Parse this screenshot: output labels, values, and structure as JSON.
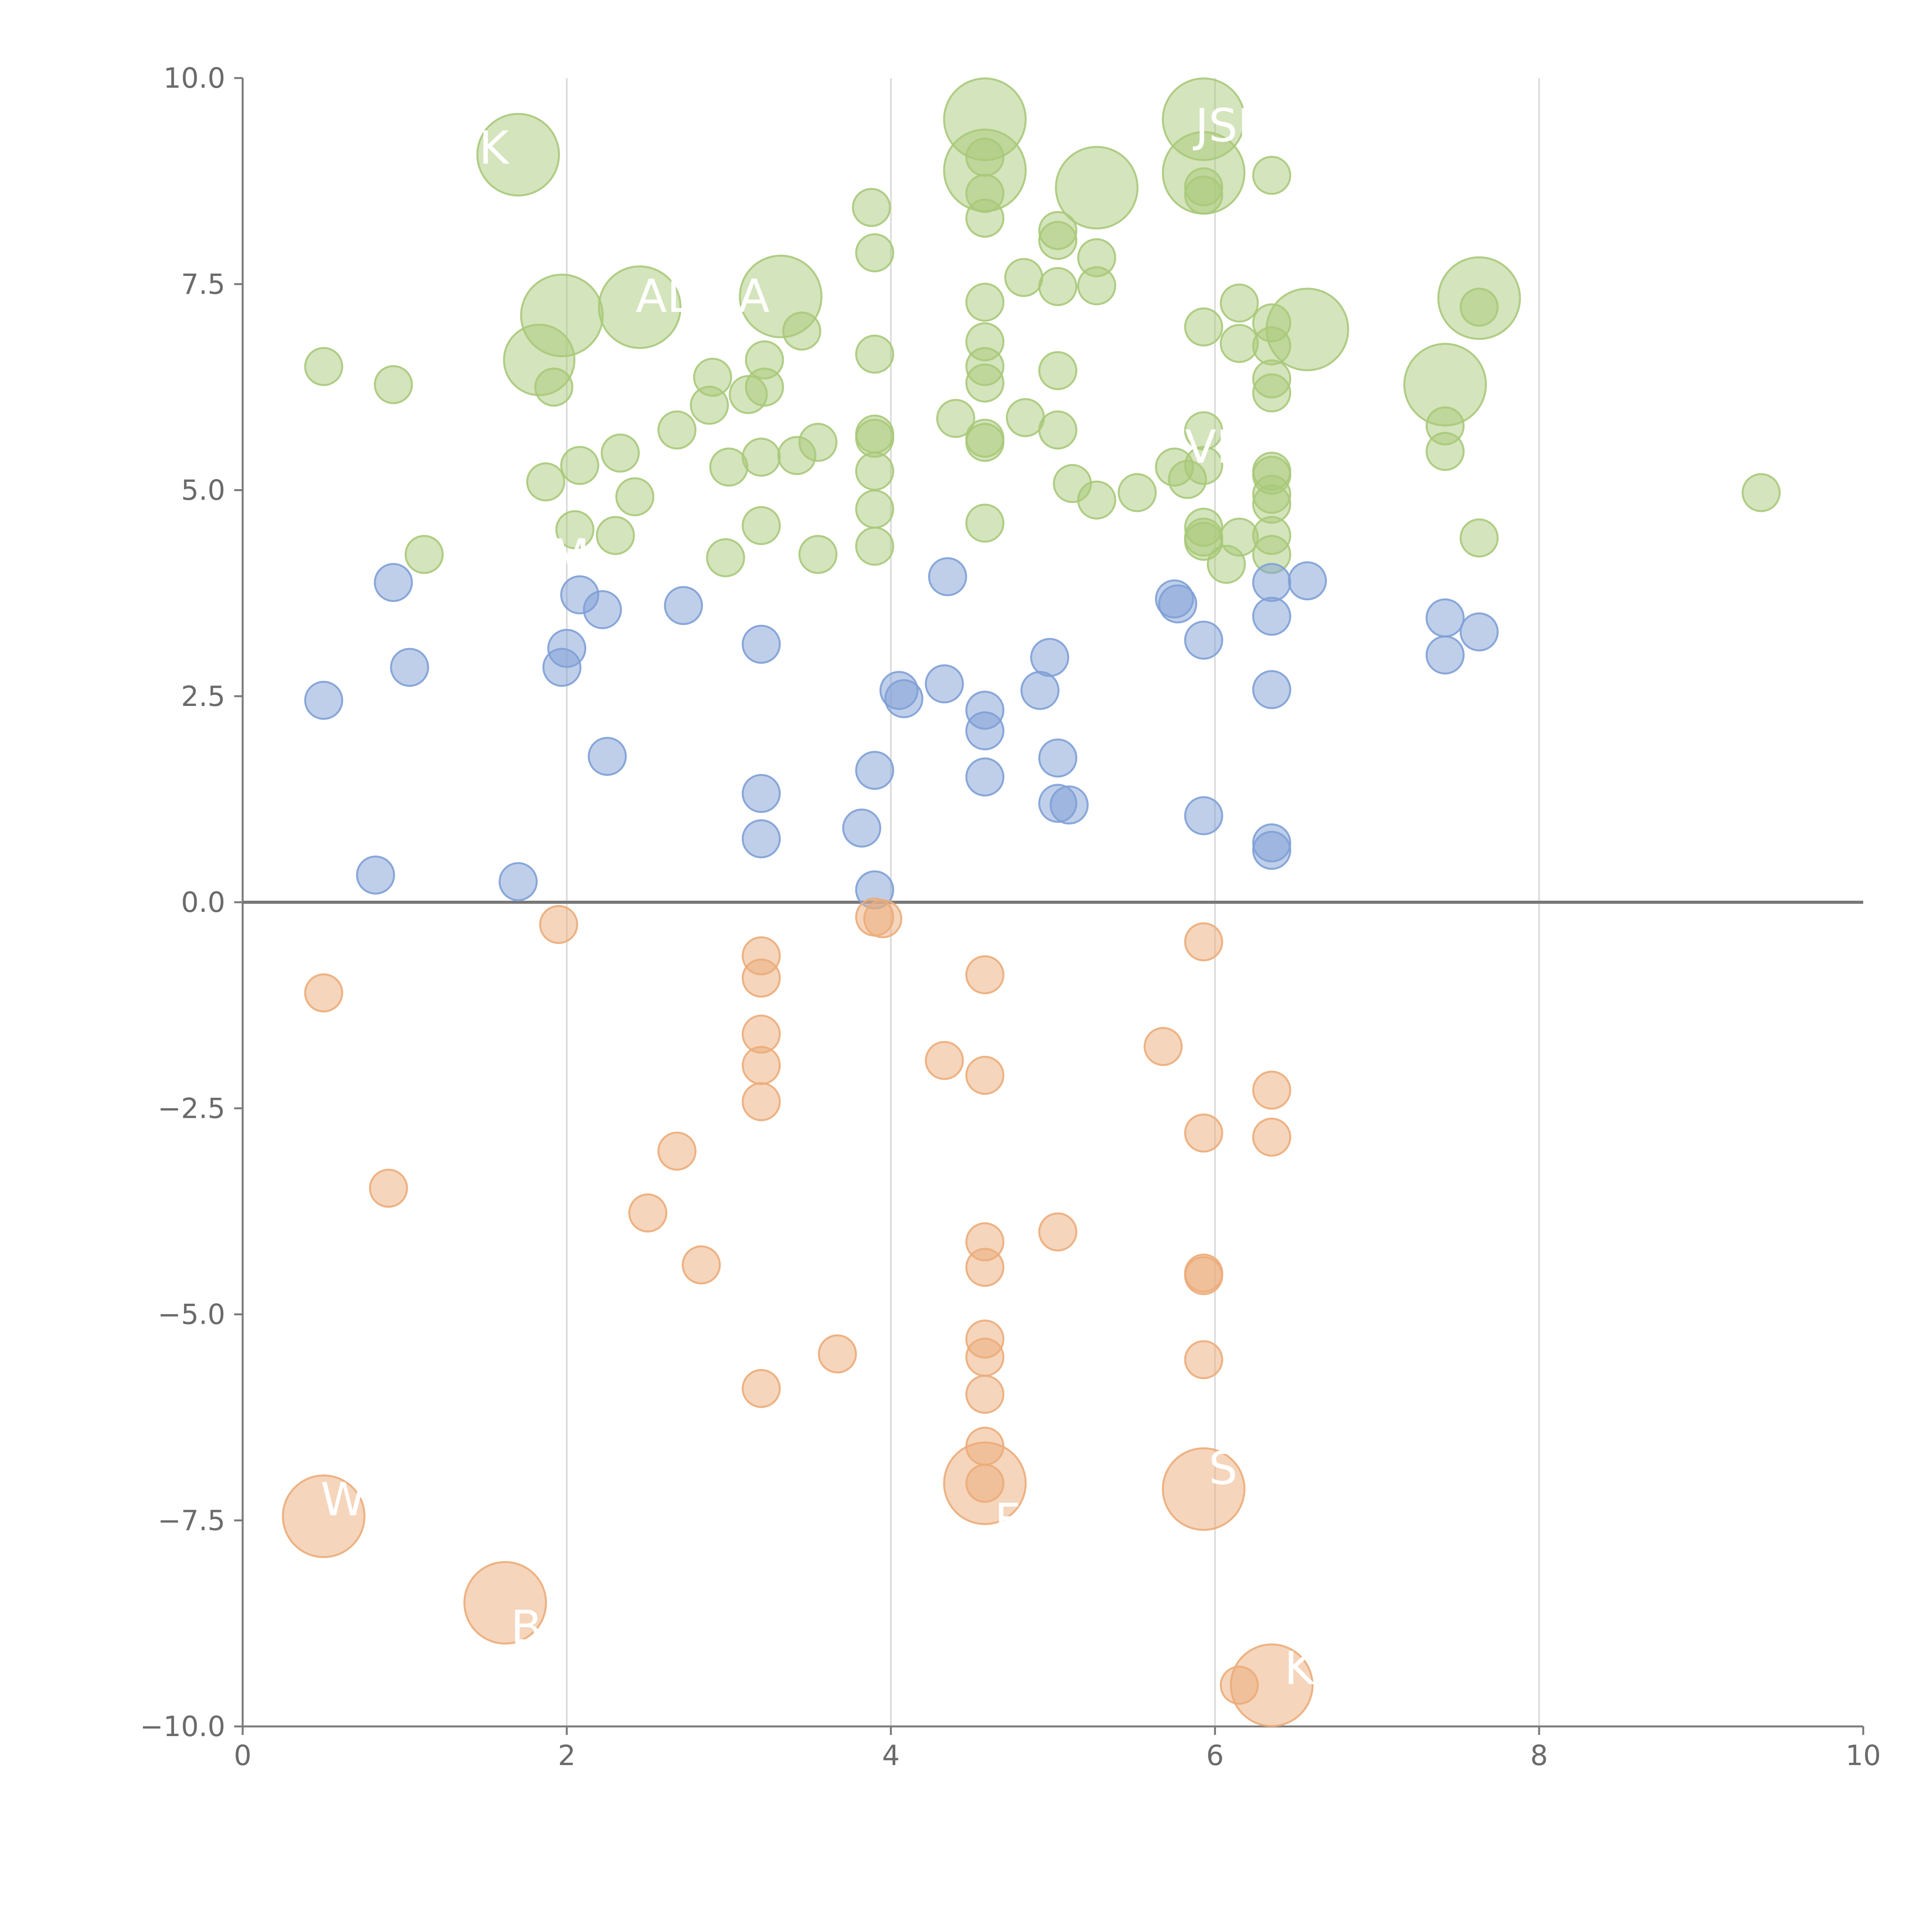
{
  "chart_data": {
    "type": "scatter",
    "xlim": [
      0,
      10
    ],
    "ylim": [
      -10,
      10
    ],
    "x_ticks": [
      "0",
      "2",
      "4",
      "6",
      "8",
      "10"
    ],
    "y_ticks": [
      "10.0",
      "7.5",
      "5.0",
      "2.5",
      "0.0",
      "−2.5",
      "−5.0",
      "−7.5",
      "−10.0"
    ],
    "x_tick_values": [
      0,
      2,
      4,
      6,
      8,
      10
    ],
    "y_tick_values": [
      10,
      7.5,
      5,
      2.5,
      0,
      -2.5,
      -5,
      -7.5,
      -10
    ],
    "grid": "vertical",
    "zero_line": true,
    "colors": {
      "high": "#a9c97a",
      "mid": "#7fa0d6",
      "low": "#ecac79"
    },
    "series": [
      {
        "color_key": "high",
        "points": [
          [
            0.5,
            6.5,
            1
          ],
          [
            0.93,
            6.28,
            1
          ],
          [
            1.12,
            4.22,
            1
          ],
          [
            1.7,
            9.07,
            2.2
          ],
          [
            1.83,
            6.58,
            1.9
          ],
          [
            1.87,
            5.1,
            1
          ],
          [
            1.92,
            6.25,
            1
          ],
          [
            1.97,
            7.12,
            2.2
          ],
          [
            2.05,
            4.52,
            1
          ],
          [
            2.08,
            5.3,
            1
          ],
          [
            2.3,
            4.45,
            1
          ],
          [
            2.33,
            5.45,
            1
          ],
          [
            2.42,
            4.92,
            1
          ],
          [
            2.45,
            7.22,
            2.2
          ],
          [
            2.68,
            5.73,
            1
          ],
          [
            2.88,
            6.03,
            1
          ],
          [
            2.9,
            6.37,
            1
          ],
          [
            2.98,
            4.18,
            1
          ],
          [
            3.0,
            5.28,
            1
          ],
          [
            3.12,
            6.16,
            1
          ],
          [
            3.2,
            4.57,
            1
          ],
          [
            3.2,
            5.4,
            1
          ],
          [
            3.22,
            6.25,
            1
          ],
          [
            3.22,
            6.58,
            1
          ],
          [
            3.32,
            7.35,
            2.2
          ],
          [
            3.42,
            5.42,
            1
          ],
          [
            3.45,
            6.93,
            1
          ],
          [
            3.55,
            4.22,
            1
          ],
          [
            3.55,
            5.58,
            1
          ],
          [
            3.88,
            8.43,
            1
          ],
          [
            3.9,
            7.88,
            1
          ],
          [
            3.9,
            6.65,
            1
          ],
          [
            3.9,
            5.68,
            1
          ],
          [
            3.9,
            5.63,
            1
          ],
          [
            3.9,
            5.23,
            1
          ],
          [
            3.9,
            4.77,
            1
          ],
          [
            3.9,
            4.32,
            1
          ],
          [
            4.4,
            5.87,
            1
          ],
          [
            4.58,
            9.5,
            2.2
          ],
          [
            4.58,
            8.88,
            2.2
          ],
          [
            4.58,
            9.04,
            1
          ],
          [
            4.58,
            8.6,
            1
          ],
          [
            4.58,
            8.3,
            1
          ],
          [
            4.58,
            7.28,
            1
          ],
          [
            4.58,
            6.8,
            1
          ],
          [
            4.58,
            6.5,
            1
          ],
          [
            4.58,
            6.3,
            1
          ],
          [
            4.58,
            5.63,
            1
          ],
          [
            4.58,
            5.58,
            1
          ],
          [
            4.58,
            4.6,
            1
          ],
          [
            4.82,
            7.58,
            1
          ],
          [
            4.83,
            5.88,
            1
          ],
          [
            5.03,
            8.15,
            1
          ],
          [
            5.03,
            8.03,
            1
          ],
          [
            5.03,
            7.47,
            1
          ],
          [
            5.03,
            6.45,
            1
          ],
          [
            5.03,
            5.73,
            1
          ],
          [
            5.12,
            5.08,
            1
          ],
          [
            5.27,
            8.67,
            2.2
          ],
          [
            5.27,
            7.82,
            1
          ],
          [
            5.27,
            7.48,
            1
          ],
          [
            5.27,
            4.88,
            1
          ],
          [
            5.52,
            4.97,
            1
          ],
          [
            5.75,
            5.28,
            1
          ],
          [
            5.83,
            5.13,
            1
          ],
          [
            5.93,
            9.5,
            2.2
          ],
          [
            5.93,
            8.85,
            2.2
          ],
          [
            5.93,
            8.68,
            1
          ],
          [
            5.93,
            8.58,
            1
          ],
          [
            5.93,
            6.98,
            1
          ],
          [
            5.93,
            5.72,
            1
          ],
          [
            5.93,
            5.3,
            1
          ],
          [
            5.93,
            4.55,
            1
          ],
          [
            5.93,
            4.43,
            1
          ],
          [
            5.93,
            4.38,
            1
          ],
          [
            6.07,
            4.1,
            1
          ],
          [
            6.15,
            7.27,
            1
          ],
          [
            6.15,
            6.78,
            1
          ],
          [
            6.15,
            4.43,
            1
          ],
          [
            6.35,
            8.82,
            1
          ],
          [
            6.35,
            7.03,
            1
          ],
          [
            6.35,
            6.75,
            1
          ],
          [
            6.35,
            6.35,
            1
          ],
          [
            6.35,
            6.18,
            1
          ],
          [
            6.35,
            5.23,
            1
          ],
          [
            6.35,
            5.18,
            1
          ],
          [
            6.35,
            4.95,
            1
          ],
          [
            6.35,
            4.83,
            1
          ],
          [
            6.35,
            4.45,
            1
          ],
          [
            6.35,
            4.22,
            1
          ],
          [
            6.57,
            6.95,
            2.2
          ],
          [
            7.42,
            6.28,
            2.2
          ],
          [
            7.42,
            5.78,
            1
          ],
          [
            7.42,
            5.47,
            1
          ],
          [
            7.63,
            7.33,
            2.2
          ],
          [
            7.63,
            7.22,
            1
          ],
          [
            7.63,
            4.42,
            1
          ],
          [
            9.37,
            4.97,
            1
          ]
        ]
      },
      {
        "color_key": "mid",
        "points": [
          [
            0.5,
            2.45,
            1
          ],
          [
            0.82,
            0.33,
            1
          ],
          [
            0.93,
            3.88,
            1
          ],
          [
            1.03,
            2.85,
            1
          ],
          [
            1.7,
            0.25,
            1
          ],
          [
            1.97,
            2.85,
            1
          ],
          [
            2.0,
            3.08,
            1
          ],
          [
            2.08,
            3.73,
            1
          ],
          [
            2.22,
            3.55,
            1
          ],
          [
            2.25,
            1.77,
            1
          ],
          [
            2.72,
            3.6,
            1
          ],
          [
            3.2,
            3.13,
            1
          ],
          [
            3.2,
            1.32,
            1
          ],
          [
            3.2,
            0.77,
            1
          ],
          [
            3.82,
            0.9,
            1
          ],
          [
            3.9,
            1.6,
            1
          ],
          [
            3.9,
            0.15,
            1
          ],
          [
            4.05,
            2.57,
            1
          ],
          [
            4.08,
            2.47,
            1
          ],
          [
            4.33,
            2.65,
            1
          ],
          [
            4.35,
            3.95,
            1
          ],
          [
            4.58,
            2.33,
            1
          ],
          [
            4.58,
            2.08,
            1
          ],
          [
            4.58,
            1.52,
            1
          ],
          [
            4.92,
            2.57,
            1
          ],
          [
            4.98,
            2.97,
            1
          ],
          [
            5.03,
            1.75,
            1
          ],
          [
            5.03,
            1.2,
            1
          ],
          [
            5.1,
            1.18,
            1
          ],
          [
            5.75,
            3.68,
            1
          ],
          [
            5.77,
            3.62,
            1
          ],
          [
            5.93,
            3.18,
            1
          ],
          [
            5.93,
            1.05,
            1
          ],
          [
            6.35,
            3.88,
            1
          ],
          [
            6.35,
            3.47,
            1
          ],
          [
            6.35,
            2.58,
            1
          ],
          [
            6.35,
            0.72,
            1
          ],
          [
            6.35,
            0.63,
            1
          ],
          [
            6.57,
            3.9,
            1
          ],
          [
            7.42,
            3.45,
            1
          ],
          [
            7.42,
            3.0,
            1
          ],
          [
            7.63,
            3.28,
            1
          ]
        ]
      },
      {
        "color_key": "low",
        "points": [
          [
            0.5,
            -1.1,
            1
          ],
          [
            0.5,
            -7.45,
            2.2
          ],
          [
            0.9,
            -3.47,
            1
          ],
          [
            1.62,
            -8.5,
            2.2
          ],
          [
            1.95,
            -0.27,
            1
          ],
          [
            2.5,
            -3.77,
            1
          ],
          [
            2.68,
            -3.02,
            1
          ],
          [
            2.83,
            -4.4,
            1
          ],
          [
            3.2,
            -0.65,
            1
          ],
          [
            3.2,
            -0.92,
            1
          ],
          [
            3.2,
            -1.6,
            1
          ],
          [
            3.2,
            -1.98,
            1
          ],
          [
            3.2,
            -2.42,
            1
          ],
          [
            3.2,
            -5.9,
            1
          ],
          [
            3.67,
            -5.48,
            1
          ],
          [
            3.9,
            -0.18,
            1
          ],
          [
            3.95,
            -0.2,
            1
          ],
          [
            4.33,
            -1.92,
            1
          ],
          [
            4.58,
            -0.88,
            1
          ],
          [
            4.58,
            -2.1,
            1
          ],
          [
            4.58,
            -4.12,
            1
          ],
          [
            4.58,
            -4.43,
            1
          ],
          [
            4.58,
            -5.3,
            1
          ],
          [
            4.58,
            -5.52,
            1
          ],
          [
            4.58,
            -5.97,
            1
          ],
          [
            4.58,
            -6.6,
            1
          ],
          [
            4.58,
            -7.05,
            2.2
          ],
          [
            4.58,
            -7.05,
            1
          ],
          [
            5.03,
            -4.0,
            1
          ],
          [
            5.68,
            -1.75,
            1
          ],
          [
            5.93,
            -0.48,
            1
          ],
          [
            5.93,
            -2.8,
            1
          ],
          [
            5.93,
            -4.5,
            1
          ],
          [
            5.93,
            -4.53,
            1
          ],
          [
            5.93,
            -5.55,
            1
          ],
          [
            5.93,
            -7.12,
            2.2
          ],
          [
            6.15,
            -9.5,
            1
          ],
          [
            6.35,
            -2.28,
            1
          ],
          [
            6.35,
            -2.85,
            1
          ],
          [
            6.35,
            -9.5,
            2.2
          ]
        ]
      }
    ],
    "labels": [
      {
        "text": "’",
        "x": 0.6,
        "y": 6.6
      },
      {
        "text": "K",
        "x": 1.55,
        "y": 9.15
      },
      {
        "text": "AL",
        "x": 2.6,
        "y": 7.35
      },
      {
        "text": "HA",
        "x": 3.05,
        "y": 7.35
      },
      {
        "text": "JSI",
        "x": 6.05,
        "y": 9.42
      },
      {
        "text": "VE",
        "x": 6.0,
        "y": 5.52
      },
      {
        "text": "M",
        "x": 2.02,
        "y": 4.2
      },
      {
        "text": "W",
        "x": 0.62,
        "y": -7.25
      },
      {
        "text": "F",
        "x": 4.72,
        "y": -7.5
      },
      {
        "text": "S",
        "x": 6.05,
        "y": -6.87
      },
      {
        "text": "B",
        "x": 1.75,
        "y": -8.8
      },
      {
        "text": "K",
        "x": 6.52,
        "y": -9.3
      }
    ]
  }
}
